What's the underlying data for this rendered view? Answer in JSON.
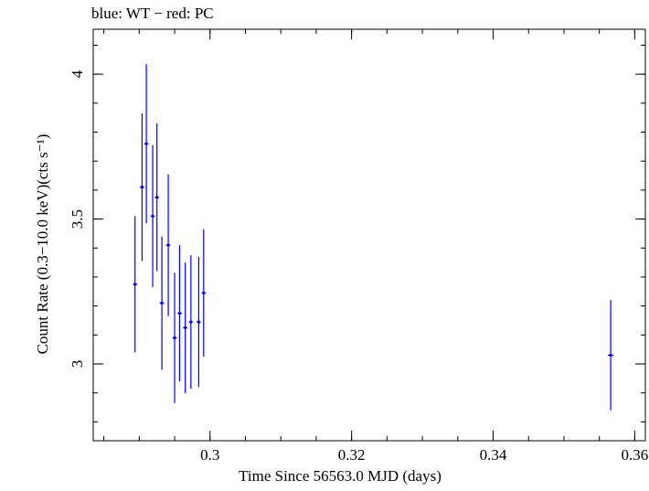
{
  "chart_data": {
    "type": "scatter",
    "title": "blue: WT − red: PC",
    "xlabel": "Time Since 56563.0 MJD (days)",
    "ylabel": "Count Rate (0.3−10.0 keV)(cts s⁻¹)",
    "xlim": [
      0.2835,
      0.3615
    ],
    "ylim": [
      2.735,
      4.155
    ],
    "xticks": [
      0.3,
      0.32,
      0.34,
      0.36
    ],
    "xtick_labels": [
      "0.3",
      "0.32",
      "0.34",
      "0.36"
    ],
    "yticks": [
      3,
      3.5,
      4
    ],
    "ytick_labels": [
      "3",
      "3.5",
      "4"
    ],
    "grid": false,
    "series": [
      {
        "color": "#0000ff",
        "x": [
          0.2894,
          0.2904,
          0.291,
          0.2919,
          0.2925,
          0.2932,
          0.2941,
          0.295,
          0.2957,
          0.2965,
          0.2973,
          0.2984,
          0.2991,
          0.3566
        ],
        "x_err": [
          0.0003,
          0.0003,
          0.0003,
          0.0003,
          0.0003,
          0.0003,
          0.0003,
          0.0003,
          0.0003,
          0.0003,
          0.0003,
          0.0003,
          0.0003,
          0.0004
        ],
        "y": [
          3.275,
          3.61,
          3.76,
          3.51,
          3.575,
          3.21,
          3.41,
          3.09,
          3.175,
          3.125,
          3.145,
          3.145,
          3.245,
          3.03
        ],
        "y_err": [
          0.235,
          0.255,
          0.275,
          0.245,
          0.255,
          0.23,
          0.245,
          0.225,
          0.235,
          0.225,
          0.23,
          0.225,
          0.22,
          0.19
        ]
      }
    ]
  }
}
